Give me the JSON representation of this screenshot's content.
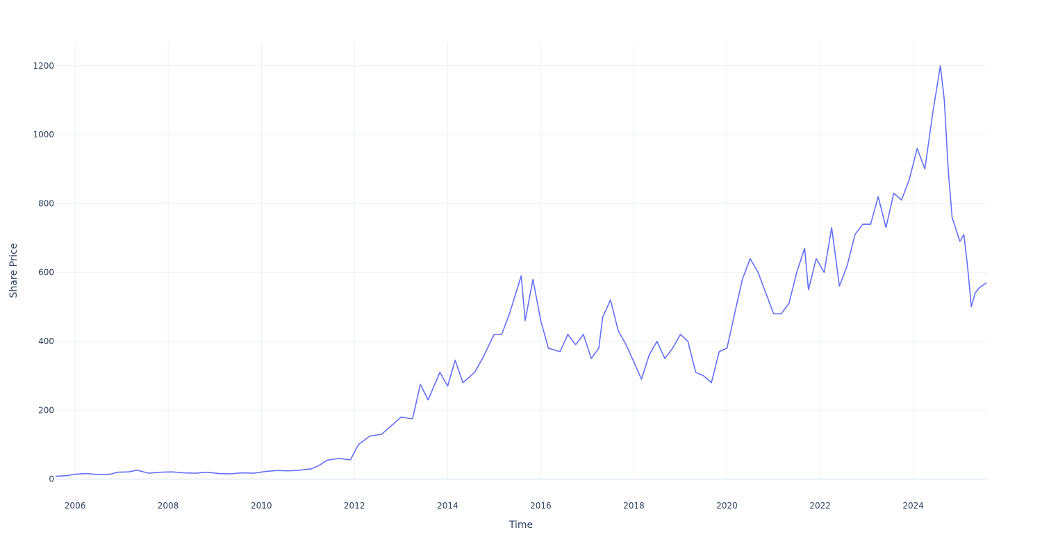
{
  "chart_data": {
    "type": "line",
    "title": "",
    "xlabel": "Time",
    "ylabel": "Share Price",
    "xlim": [
      "2005-08-01",
      "2025-07-28"
    ],
    "ylim": [
      -25,
      1270
    ],
    "grid": true,
    "x_tick_labels": [
      "2006",
      "2008",
      "2010",
      "2012",
      "2014",
      "2016",
      "2018",
      "2020",
      "2022",
      "2024"
    ],
    "y_tick_labels": [
      "0",
      "200",
      "400",
      "600",
      "800",
      "1000",
      "1200"
    ],
    "series": [
      {
        "color": "#636efa",
        "points": [
          [
            "2005-08-01",
            8
          ],
          [
            "2005-11-01",
            10
          ],
          [
            "2006-01-01",
            14
          ],
          [
            "2006-04-01",
            16
          ],
          [
            "2006-07-01",
            13
          ],
          [
            "2006-10-01",
            14
          ],
          [
            "2006-12-01",
            20
          ],
          [
            "2007-03-01",
            21
          ],
          [
            "2007-05-01",
            26
          ],
          [
            "2007-08-01",
            17
          ],
          [
            "2007-11-01",
            20
          ],
          [
            "2008-02-01",
            21
          ],
          [
            "2008-05-01",
            18
          ],
          [
            "2008-08-01",
            17
          ],
          [
            "2008-11-01",
            20
          ],
          [
            "2009-02-01",
            16
          ],
          [
            "2009-05-01",
            15
          ],
          [
            "2009-08-01",
            18
          ],
          [
            "2009-11-01",
            17
          ],
          [
            "2010-02-01",
            22
          ],
          [
            "2010-05-01",
            25
          ],
          [
            "2010-08-01",
            24
          ],
          [
            "2010-11-01",
            26
          ],
          [
            "2011-02-01",
            30
          ],
          [
            "2011-04-01",
            40
          ],
          [
            "2011-06-01",
            55
          ],
          [
            "2011-09-01",
            60
          ],
          [
            "2011-12-01",
            56
          ],
          [
            "2012-02-01",
            100
          ],
          [
            "2012-05-01",
            125
          ],
          [
            "2012-08-01",
            130
          ],
          [
            "2012-11-01",
            160
          ],
          [
            "2013-01-01",
            180
          ],
          [
            "2013-04-01",
            175
          ],
          [
            "2013-06-01",
            275
          ],
          [
            "2013-08-01",
            230
          ],
          [
            "2013-11-01",
            310
          ],
          [
            "2014-01-01",
            270
          ],
          [
            "2014-03-01",
            345
          ],
          [
            "2014-05-01",
            280
          ],
          [
            "2014-08-01",
            310
          ],
          [
            "2014-10-01",
            350
          ],
          [
            "2015-01-01",
            420
          ],
          [
            "2015-03-01",
            420
          ],
          [
            "2015-05-01",
            480
          ],
          [
            "2015-08-01",
            590
          ],
          [
            "2015-09-01",
            460
          ],
          [
            "2015-11-01",
            580
          ],
          [
            "2016-01-01",
            460
          ],
          [
            "2016-03-01",
            380
          ],
          [
            "2016-06-01",
            370
          ],
          [
            "2016-08-01",
            420
          ],
          [
            "2016-10-01",
            390
          ],
          [
            "2016-12-01",
            420
          ],
          [
            "2017-02-01",
            350
          ],
          [
            "2017-04-01",
            380
          ],
          [
            "2017-05-01",
            470
          ],
          [
            "2017-07-01",
            520
          ],
          [
            "2017-09-01",
            430
          ],
          [
            "2017-11-01",
            390
          ],
          [
            "2018-01-01",
            340
          ],
          [
            "2018-03-01",
            290
          ],
          [
            "2018-05-01",
            360
          ],
          [
            "2018-07-01",
            400
          ],
          [
            "2018-09-01",
            350
          ],
          [
            "2018-11-01",
            380
          ],
          [
            "2019-01-01",
            420
          ],
          [
            "2019-03-01",
            400
          ],
          [
            "2019-05-01",
            310
          ],
          [
            "2019-07-01",
            300
          ],
          [
            "2019-09-01",
            280
          ],
          [
            "2019-11-01",
            370
          ],
          [
            "2020-01-01",
            380
          ],
          [
            "2020-03-01",
            480
          ],
          [
            "2020-05-01",
            580
          ],
          [
            "2020-07-01",
            640
          ],
          [
            "2020-09-01",
            600
          ],
          [
            "2020-11-01",
            540
          ],
          [
            "2021-01-01",
            480
          ],
          [
            "2021-03-01",
            480
          ],
          [
            "2021-05-01",
            510
          ],
          [
            "2021-07-01",
            600
          ],
          [
            "2021-09-01",
            670
          ],
          [
            "2021-10-01",
            550
          ],
          [
            "2021-12-01",
            640
          ],
          [
            "2022-02-01",
            600
          ],
          [
            "2022-04-01",
            730
          ],
          [
            "2022-06-01",
            560
          ],
          [
            "2022-08-01",
            620
          ],
          [
            "2022-10-01",
            710
          ],
          [
            "2022-12-01",
            740
          ],
          [
            "2023-02-01",
            740
          ],
          [
            "2023-04-01",
            820
          ],
          [
            "2023-06-01",
            730
          ],
          [
            "2023-08-01",
            830
          ],
          [
            "2023-10-01",
            810
          ],
          [
            "2023-12-01",
            870
          ],
          [
            "2024-02-01",
            960
          ],
          [
            "2024-04-01",
            900
          ],
          [
            "2024-06-01",
            1060
          ],
          [
            "2024-08-01",
            1200
          ],
          [
            "2024-09-01",
            1100
          ],
          [
            "2024-10-01",
            900
          ],
          [
            "2024-11-01",
            760
          ],
          [
            "2025-01-01",
            690
          ],
          [
            "2025-02-01",
            710
          ],
          [
            "2025-03-01",
            620
          ],
          [
            "2025-04-01",
            500
          ],
          [
            "2025-05-01",
            540
          ],
          [
            "2025-06-01",
            555
          ],
          [
            "2025-07-28",
            570
          ]
        ]
      }
    ]
  }
}
